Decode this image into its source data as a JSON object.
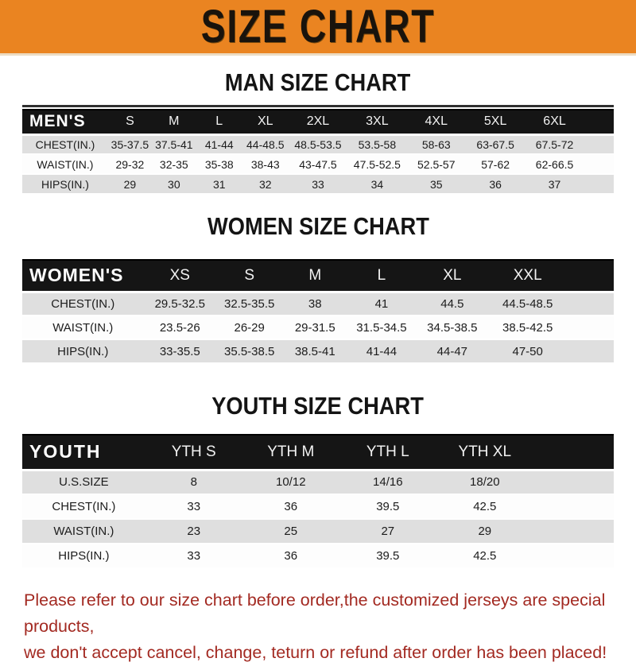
{
  "banner": {
    "title": "SIZE CHART"
  },
  "colors": {
    "banner_orange": "#EA8421",
    "table_header_black": "#151515",
    "row_stripe_gray": "#DFDFDF",
    "footer_red": "#A32A22"
  },
  "chart_data": [
    {
      "type": "table",
      "title": "MAN SIZE CHART",
      "label": "MEN'S",
      "columns": [
        "S",
        "M",
        "L",
        "XL",
        "2XL",
        "3XL",
        "4XL",
        "5XL",
        "6XL"
      ],
      "rows": [
        {
          "label": "CHEST(IN.)",
          "values": [
            "35-37.5",
            "37.5-41",
            "41-44",
            "44-48.5",
            "48.5-53.5",
            "53.5-58",
            "58-63",
            "63-67.5",
            "67.5-72"
          ]
        },
        {
          "label": "WAIST(IN.)",
          "values": [
            "29-32",
            "32-35",
            "35-38",
            "38-43",
            "43-47.5",
            "47.5-52.5",
            "52.5-57",
            "57-62",
            "62-66.5"
          ]
        },
        {
          "label": "HIPS(IN.)",
          "values": [
            "29",
            "30",
            "31",
            "32",
            "33",
            "34",
            "35",
            "36",
            "37"
          ]
        }
      ]
    },
    {
      "type": "table",
      "title": "WOMEN SIZE CHART",
      "label": "WOMEN'S",
      "columns": [
        "XS",
        "S",
        "M",
        "L",
        "XL",
        "XXL"
      ],
      "rows": [
        {
          "label": "CHEST(IN.)",
          "values": [
            "29.5-32.5",
            "32.5-35.5",
            "38",
            "41",
            "44.5",
            "44.5-48.5"
          ]
        },
        {
          "label": "WAIST(IN.)",
          "values": [
            "23.5-26",
            "26-29",
            "29-31.5",
            "31.5-34.5",
            "34.5-38.5",
            "38.5-42.5"
          ]
        },
        {
          "label": "HIPS(IN.)",
          "values": [
            "33-35.5",
            "35.5-38.5",
            "38.5-41",
            "41-44",
            "44-47",
            "47-50"
          ]
        }
      ]
    },
    {
      "type": "table",
      "title": "YOUTH SIZE CHART",
      "label": "YOUTH",
      "columns": [
        "YTH S",
        "YTH M",
        "YTH L",
        "YTH XL"
      ],
      "rows": [
        {
          "label": "U.S.SIZE",
          "values": [
            "8",
            "10/12",
            "14/16",
            "18/20"
          ]
        },
        {
          "label": "CHEST(IN.)",
          "values": [
            "33",
            "36",
            "39.5",
            "42.5"
          ]
        },
        {
          "label": "WAIST(IN.)",
          "values": [
            "23",
            "25",
            "27",
            "29"
          ]
        },
        {
          "label": "HIPS(IN.)",
          "values": [
            "33",
            "36",
            "39.5",
            "42.5"
          ]
        }
      ]
    }
  ],
  "footer": {
    "line1": "Please refer to our size chart before order,the customized jerseys are special products,",
    "line2": "we don't accept cancel, change, teturn or refund after order has been placed!"
  }
}
